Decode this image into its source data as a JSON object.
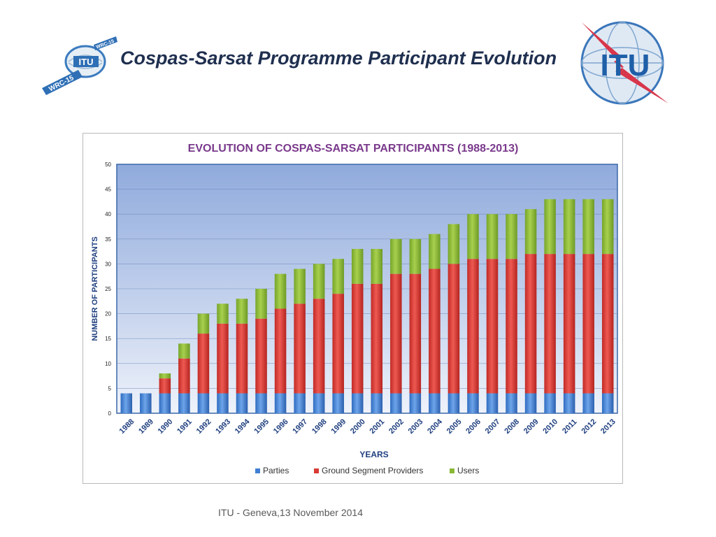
{
  "slide": {
    "title": "Cospas-Sarsat Programme Participant Evolution",
    "footer": "ITU - Geneva,13 November 2014",
    "logo_left_text": "ITU",
    "logo_left_ribbon_1": "WRC-15",
    "logo_left_ribbon_2": "WRC-15",
    "logo_right_text": "ITU"
  },
  "colors": {
    "parties": "#3f7fd1",
    "ground": "#d83b36",
    "users": "#8ab834",
    "title_text": "#7a3a8c",
    "axis_label_text": "#1f3f7f"
  },
  "chart_data": {
    "type": "bar",
    "stacked": true,
    "title": "EVOLUTION OF COSPAS-SARSAT PARTICIPANTS (1988-2013)",
    "xlabel": "YEARS",
    "ylabel": "NUMBER OF PARTICIPANTS",
    "ylim": [
      0,
      50
    ],
    "yticks": [
      0,
      5,
      10,
      15,
      20,
      25,
      30,
      35,
      40,
      45,
      50
    ],
    "grid": true,
    "legend_position": "bottom",
    "categories": [
      "1988",
      "1989",
      "1990",
      "1991",
      "1992",
      "1993",
      "1994",
      "1995",
      "1996",
      "1997",
      "1998",
      "1999",
      "2000",
      "2001",
      "2002",
      "2003",
      "2004",
      "2005",
      "2006",
      "2007",
      "2008",
      "2009",
      "2010",
      "2011",
      "2012",
      "2013"
    ],
    "series": [
      {
        "name": "Parties",
        "values": [
          4,
          4,
          4,
          4,
          4,
          4,
          4,
          4,
          4,
          4,
          4,
          4,
          4,
          4,
          4,
          4,
          4,
          4,
          4,
          4,
          4,
          4,
          4,
          4,
          4,
          4
        ]
      },
      {
        "name": "Ground Segment Providers",
        "values": [
          0,
          0,
          3,
          7,
          12,
          14,
          14,
          15,
          17,
          18,
          19,
          20,
          22,
          22,
          24,
          24,
          25,
          26,
          27,
          27,
          27,
          28,
          28,
          28,
          28,
          28
        ]
      },
      {
        "name": "Users",
        "values": [
          0,
          0,
          1,
          3,
          4,
          4,
          5,
          6,
          7,
          7,
          7,
          7,
          7,
          7,
          7,
          7,
          7,
          8,
          9,
          9,
          9,
          9,
          11,
          11,
          11,
          11
        ]
      }
    ]
  }
}
